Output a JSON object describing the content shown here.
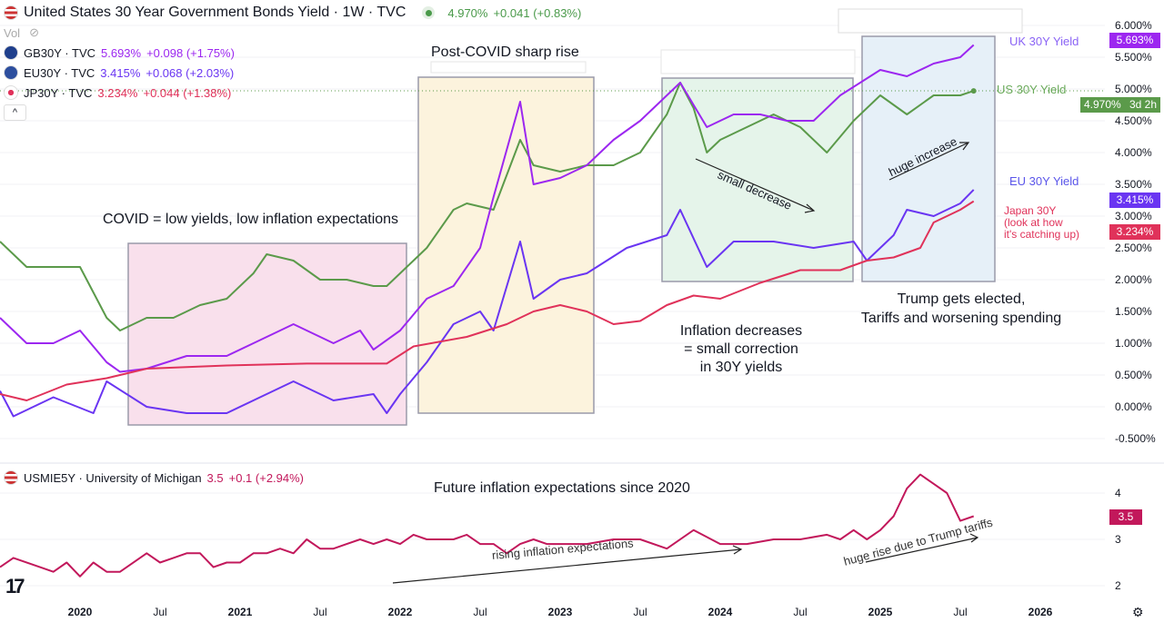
{
  "header": {
    "title": "United States 30 Year Government Bonds Yield · 1W · TVC",
    "value": "4.970%",
    "change": "+0.041 (+0.83%)",
    "vol_label": "Vol"
  },
  "legend": [
    {
      "symbol": "GB30Y · TVC",
      "value": "5.693%",
      "change": "+0.098 (+1.75%)",
      "color": "#9c27f0"
    },
    {
      "symbol": "EU30Y · TVC",
      "value": "3.415%",
      "change": "+0.068 (+2.03%)",
      "color": "#6a35f2"
    },
    {
      "symbol": "JP30Y · TVC",
      "value": "3.234%",
      "change": "+0.044 (+1.38%)",
      "color": "#e0325a"
    }
  ],
  "lower_legend": {
    "symbol": "USMIE5Y · University of Michigan",
    "value": "3.5",
    "change": "+0.1 (+2.94%)"
  },
  "price_tags": {
    "uk": "5.693%",
    "us": "4.970%",
    "us_countdown": "3d 2h",
    "eu": "3.415%",
    "jp": "3.234%",
    "lower": "3.5"
  },
  "annotations": {
    "covid": "COVID = low yields, low inflation expectations",
    "post_covid": "Post-COVID sharp rise",
    "inflation_dec_1": "Inflation decreases",
    "inflation_dec_2": "= small correction",
    "inflation_dec_3": "in 30Y yields",
    "trump_1": "Trump gets elected,",
    "trump_2": "Tariffs and worsening spending",
    "small_decrease": "small decrease",
    "huge_increase": "huge increase",
    "uk_label": "UK 30Y Yield",
    "us_label": "US 30Y Yield",
    "eu_label": "EU 30Y Yield",
    "jp_label_1": "Japan 30Y",
    "jp_label_2": "(look at how",
    "jp_label_3": "it's catching up)",
    "future": "Future inflation expectations since 2020",
    "rising": "rising inflation expectations",
    "huge_rise": "huge rise due to Trump tariffs"
  },
  "chart_data": [
    {
      "type": "line",
      "ylim": [
        -0.5,
        6.0
      ],
      "yticks": [
        "6.000%",
        "5.500%",
        "5.000%",
        "4.500%",
        "4.000%",
        "3.500%",
        "3.000%",
        "2.500%",
        "2.000%",
        "1.500%",
        "1.000%",
        "0.500%",
        "0.000%",
        "-0.500%"
      ],
      "series": [
        {
          "name": "US 30Y Yield",
          "color": "#5b9a4a",
          "points": [
            [
              "2019-07",
              2.6
            ],
            [
              "2019-09",
              2.2
            ],
            [
              "2019-11",
              2.2
            ],
            [
              "2020-01",
              2.2
            ],
            [
              "2020-03",
              1.4
            ],
            [
              "2020-04",
              1.2
            ],
            [
              "2020-06",
              1.4
            ],
            [
              "2020-08",
              1.4
            ],
            [
              "2020-10",
              1.6
            ],
            [
              "2020-12",
              1.7
            ],
            [
              "2021-02",
              2.1
            ],
            [
              "2021-03",
              2.4
            ],
            [
              "2021-05",
              2.3
            ],
            [
              "2021-07",
              2.0
            ],
            [
              "2021-09",
              2.0
            ],
            [
              "2021-11",
              1.9
            ],
            [
              "2021-12",
              1.9
            ],
            [
              "2022-01",
              2.1
            ],
            [
              "2022-03",
              2.5
            ],
            [
              "2022-05",
              3.1
            ],
            [
              "2022-06",
              3.2
            ],
            [
              "2022-08",
              3.1
            ],
            [
              "2022-10",
              4.2
            ],
            [
              "2022-11",
              3.8
            ],
            [
              "2023-01",
              3.7
            ],
            [
              "2023-03",
              3.8
            ],
            [
              "2023-05",
              3.8
            ],
            [
              "2023-07",
              4.0
            ],
            [
              "2023-09",
              4.6
            ],
            [
              "2023-10",
              5.1
            ],
            [
              "2023-11",
              4.7
            ],
            [
              "2023-12",
              4.0
            ],
            [
              "2024-01",
              4.2
            ],
            [
              "2024-03",
              4.4
            ],
            [
              "2024-05",
              4.6
            ],
            [
              "2024-07",
              4.4
            ],
            [
              "2024-09",
              4.0
            ],
            [
              "2024-11",
              4.5
            ],
            [
              "2025-01",
              4.9
            ],
            [
              "2025-03",
              4.6
            ],
            [
              "2025-05",
              4.9
            ],
            [
              "2025-07",
              4.9
            ],
            [
              "2025-08",
              4.97
            ]
          ]
        },
        {
          "name": "UK 30Y Yield",
          "color": "#9c27f0",
          "points": [
            [
              "2019-07",
              1.4
            ],
            [
              "2019-09",
              1.0
            ],
            [
              "2019-11",
              1.0
            ],
            [
              "2020-01",
              1.2
            ],
            [
              "2020-03",
              0.7
            ],
            [
              "2020-04",
              0.55
            ],
            [
              "2020-06",
              0.6
            ],
            [
              "2020-09",
              0.8
            ],
            [
              "2020-12",
              0.8
            ],
            [
              "2021-02",
              1.0
            ],
            [
              "2021-05",
              1.3
            ],
            [
              "2021-08",
              1.0
            ],
            [
              "2021-10",
              1.2
            ],
            [
              "2021-11",
              0.9
            ],
            [
              "2022-01",
              1.2
            ],
            [
              "2022-03",
              1.7
            ],
            [
              "2022-05",
              1.9
            ],
            [
              "2022-07",
              2.5
            ],
            [
              "2022-08",
              3.3
            ],
            [
              "2022-10",
              4.8
            ],
            [
              "2022-11",
              3.5
            ],
            [
              "2023-01",
              3.6
            ],
            [
              "2023-03",
              3.8
            ],
            [
              "2023-05",
              4.2
            ],
            [
              "2023-07",
              4.5
            ],
            [
              "2023-08",
              4.7
            ],
            [
              "2023-10",
              5.1
            ],
            [
              "2023-12",
              4.4
            ],
            [
              "2024-02",
              4.6
            ],
            [
              "2024-04",
              4.6
            ],
            [
              "2024-06",
              4.5
            ],
            [
              "2024-08",
              4.5
            ],
            [
              "2024-10",
              4.9
            ],
            [
              "2025-01",
              5.3
            ],
            [
              "2025-03",
              5.2
            ],
            [
              "2025-05",
              5.4
            ],
            [
              "2025-07",
              5.5
            ],
            [
              "2025-08",
              5.693
            ]
          ]
        },
        {
          "name": "EU 30Y Yield",
          "color": "#6a35f2",
          "points": [
            [
              "2019-07",
              0.25
            ],
            [
              "2019-08",
              -0.15
            ],
            [
              "2019-11",
              0.15
            ],
            [
              "2020-02",
              -0.1
            ],
            [
              "2020-03",
              0.4
            ],
            [
              "2020-06",
              0.0
            ],
            [
              "2020-09",
              -0.1
            ],
            [
              "2020-12",
              -0.1
            ],
            [
              "2021-03",
              0.2
            ],
            [
              "2021-05",
              0.4
            ],
            [
              "2021-08",
              0.1
            ],
            [
              "2021-11",
              0.2
            ],
            [
              "2021-12",
              -0.1
            ],
            [
              "2022-01",
              0.2
            ],
            [
              "2022-03",
              0.7
            ],
            [
              "2022-05",
              1.3
            ],
            [
              "2022-07",
              1.5
            ],
            [
              "2022-08",
              1.2
            ],
            [
              "2022-10",
              2.6
            ],
            [
              "2022-11",
              1.7
            ],
            [
              "2023-01",
              2.0
            ],
            [
              "2023-03",
              2.1
            ],
            [
              "2023-06",
              2.5
            ],
            [
              "2023-09",
              2.7
            ],
            [
              "2023-10",
              3.1
            ],
            [
              "2023-12",
              2.2
            ],
            [
              "2024-02",
              2.6
            ],
            [
              "2024-05",
              2.6
            ],
            [
              "2024-08",
              2.5
            ],
            [
              "2024-11",
              2.6
            ],
            [
              "2024-12",
              2.3
            ],
            [
              "2025-02",
              2.7
            ],
            [
              "2025-03",
              3.1
            ],
            [
              "2025-05",
              3.0
            ],
            [
              "2025-07",
              3.2
            ],
            [
              "2025-08",
              3.415
            ]
          ]
        },
        {
          "name": "Japan 30Y",
          "color": "#e0325a",
          "points": [
            [
              "2019-07",
              0.2
            ],
            [
              "2019-09",
              0.1
            ],
            [
              "2019-12",
              0.35
            ],
            [
              "2020-03",
              0.45
            ],
            [
              "2020-06",
              0.6
            ],
            [
              "2020-12",
              0.65
            ],
            [
              "2021-06",
              0.68
            ],
            [
              "2021-12",
              0.68
            ],
            [
              "2022-02",
              0.95
            ],
            [
              "2022-06",
              1.1
            ],
            [
              "2022-09",
              1.3
            ],
            [
              "2022-11",
              1.5
            ],
            [
              "2023-01",
              1.6
            ],
            [
              "2023-03",
              1.5
            ],
            [
              "2023-05",
              1.3
            ],
            [
              "2023-07",
              1.35
            ],
            [
              "2023-09",
              1.6
            ],
            [
              "2023-11",
              1.75
            ],
            [
              "2024-01",
              1.7
            ],
            [
              "2024-04",
              1.95
            ],
            [
              "2024-07",
              2.15
            ],
            [
              "2024-10",
              2.15
            ],
            [
              "2024-12",
              2.3
            ],
            [
              "2025-02",
              2.35
            ],
            [
              "2025-04",
              2.5
            ],
            [
              "2025-05",
              2.9
            ],
            [
              "2025-07",
              3.1
            ],
            [
              "2025-08",
              3.234
            ]
          ]
        }
      ]
    },
    {
      "type": "line",
      "ylim": [
        1.8,
        4.6
      ],
      "yticks": [
        "4",
        "3",
        "2"
      ],
      "series": [
        {
          "name": "USMIE5Y",
          "color": "#c2185b",
          "points": [
            [
              "2019-07",
              2.4
            ],
            [
              "2019-08",
              2.6
            ],
            [
              "2019-10",
              2.4
            ],
            [
              "2019-11",
              2.3
            ],
            [
              "2019-12",
              2.5
            ],
            [
              "2020-01",
              2.2
            ],
            [
              "2020-02",
              2.5
            ],
            [
              "2020-03",
              2.3
            ],
            [
              "2020-04",
              2.3
            ],
            [
              "2020-06",
              2.7
            ],
            [
              "2020-07",
              2.5
            ],
            [
              "2020-08",
              2.6
            ],
            [
              "2020-09",
              2.7
            ],
            [
              "2020-10",
              2.7
            ],
            [
              "2020-11",
              2.4
            ],
            [
              "2020-12",
              2.5
            ],
            [
              "2021-01",
              2.5
            ],
            [
              "2021-02",
              2.7
            ],
            [
              "2021-03",
              2.7
            ],
            [
              "2021-04",
              2.8
            ],
            [
              "2021-05",
              2.7
            ],
            [
              "2021-06",
              3.0
            ],
            [
              "2021-07",
              2.8
            ],
            [
              "2021-08",
              2.8
            ],
            [
              "2021-09",
              2.9
            ],
            [
              "2021-10",
              3.0
            ],
            [
              "2021-11",
              2.9
            ],
            [
              "2021-12",
              3.0
            ],
            [
              "2022-01",
              2.9
            ],
            [
              "2022-02",
              3.1
            ],
            [
              "2022-03",
              3.0
            ],
            [
              "2022-05",
              3.0
            ],
            [
              "2022-06",
              3.1
            ],
            [
              "2022-07",
              2.9
            ],
            [
              "2022-08",
              2.9
            ],
            [
              "2022-09",
              2.7
            ],
            [
              "2022-10",
              2.9
            ],
            [
              "2022-11",
              3.0
            ],
            [
              "2022-12",
              2.9
            ],
            [
              "2023-03",
              2.9
            ],
            [
              "2023-05",
              3.0
            ],
            [
              "2023-07",
              3.0
            ],
            [
              "2023-09",
              2.8
            ],
            [
              "2023-11",
              3.2
            ],
            [
              "2024-01",
              2.9
            ],
            [
              "2024-03",
              2.9
            ],
            [
              "2024-05",
              3.0
            ],
            [
              "2024-07",
              3.0
            ],
            [
              "2024-09",
              3.1
            ],
            [
              "2024-10",
              3.0
            ],
            [
              "2024-11",
              3.2
            ],
            [
              "2024-12",
              3.0
            ],
            [
              "2025-01",
              3.2
            ],
            [
              "2025-02",
              3.5
            ],
            [
              "2025-03",
              4.1
            ],
            [
              "2025-04",
              4.4
            ],
            [
              "2025-05",
              4.2
            ],
            [
              "2025-06",
              4.0
            ],
            [
              "2025-07",
              3.4
            ],
            [
              "2025-08",
              3.5
            ]
          ]
        }
      ]
    }
  ],
  "x_axis": {
    "ticks": [
      [
        "2020-01",
        "2020",
        true
      ],
      [
        "2020-07",
        "Jul",
        false
      ],
      [
        "2021-01",
        "2021",
        true
      ],
      [
        "2021-07",
        "Jul",
        false
      ],
      [
        "2022-01",
        "2022",
        true
      ],
      [
        "2022-07",
        "Jul",
        false
      ],
      [
        "2023-01",
        "2023",
        true
      ],
      [
        "2023-07",
        "Jul",
        false
      ],
      [
        "2024-01",
        "2024",
        true
      ],
      [
        "2024-07",
        "Jul",
        false
      ],
      [
        "2025-01",
        "2025",
        true
      ],
      [
        "2025-07",
        "Jul",
        false
      ],
      [
        "2026-01",
        "2026",
        true
      ]
    ]
  }
}
